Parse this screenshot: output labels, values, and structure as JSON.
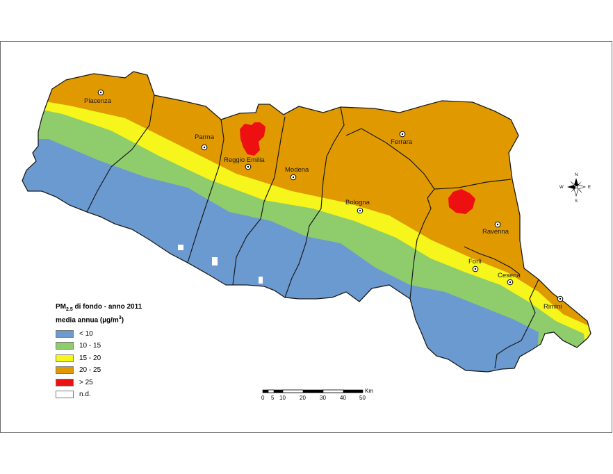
{
  "cities": [
    {
      "name": "Piacenza"
    },
    {
      "name": "Parma"
    },
    {
      "name": "Reggio Emilia"
    },
    {
      "name": "Modena"
    },
    {
      "name": "Ferrara"
    },
    {
      "name": "Bologna"
    },
    {
      "name": "Ravenna"
    },
    {
      "name": "Forlì"
    },
    {
      "name": "Cesena"
    },
    {
      "name": "Rimini"
    }
  ],
  "legend": {
    "title_line1_prefix": "PM",
    "title_line1_sub": "2.5",
    "title_line1_rest": " di fondo - anno 2011",
    "title_line2_prefix": "media annua (µg/m",
    "title_line2_sup": "3",
    "title_line2_suffix": ")",
    "classes": [
      {
        "label": "< 10",
        "color": "#6b9ad0"
      },
      {
        "label": "10 - 15",
        "color": "#8fcc6c"
      },
      {
        "label": "15 - 20",
        "color": "#f6f61c"
      },
      {
        "label": "20 - 25",
        "color": "#e09a00"
      },
      {
        "label": "> 25",
        "color": "#ee1010"
      },
      {
        "label": "n.d.",
        "color": "#ffffff"
      }
    ]
  },
  "scale_bar": {
    "unit": "Km",
    "ticks": [
      "0",
      "5",
      "10",
      "20",
      "30",
      "40",
      "50"
    ]
  },
  "compass": {
    "n": "N",
    "s": "S",
    "e": "E",
    "w": "W"
  }
}
